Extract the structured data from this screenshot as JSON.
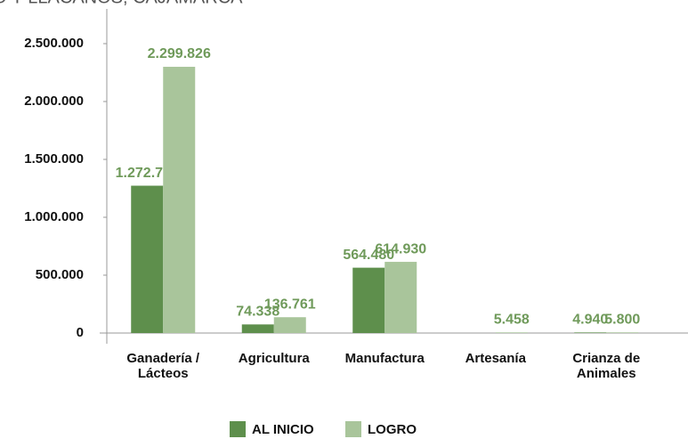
{
  "chart_data": {
    "type": "bar",
    "title": "O Y LLACANOS, CAJAMARCA",
    "categories": [
      [
        "Ganadería /",
        "Lácteos"
      ],
      [
        "Agricultura"
      ],
      [
        "Manufactura"
      ],
      [
        "Artesanía"
      ],
      [
        "Crianza de",
        "Animales"
      ]
    ],
    "series": [
      {
        "name": "AL INICIO",
        "color": "#5e8f4c",
        "values": [
          1272756,
          74338,
          564480,
          null,
          4940
        ],
        "value_labels": [
          "1.272.756",
          "74.338",
          "564.480",
          null,
          "4.940"
        ]
      },
      {
        "name": "LOGRO",
        "color": "#a9c59b",
        "values": [
          2299826,
          136761,
          614930,
          5458,
          5800
        ],
        "value_labels": [
          "2.299.826",
          "136.761",
          "614.930",
          "5.458",
          "5.800"
        ]
      }
    ],
    "ylim": [
      0,
      2500000
    ],
    "yticks": [
      {
        "value": 0,
        "label": "0"
      },
      {
        "value": 500000,
        "label": "500.000"
      },
      {
        "value": 1000000,
        "label": "1.000.000"
      },
      {
        "value": 1500000,
        "label": "1.500.000"
      },
      {
        "value": 2000000,
        "label": "2.000.000"
      },
      {
        "value": 2500000,
        "label": "2.500.000"
      }
    ],
    "grid": false,
    "legend": "bottom"
  }
}
